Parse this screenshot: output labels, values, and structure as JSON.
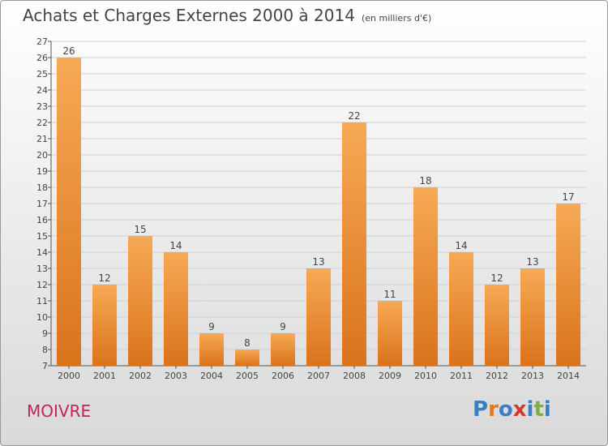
{
  "title": "Achats et Charges Externes 2000 à 2014",
  "unit": "(en milliers d'€)",
  "commune": "MOIVRE",
  "logo": {
    "text": "Proxiti",
    "colors": [
      "#3a7fc0",
      "#e07a1f",
      "#3a7fc0",
      "#d43a2a",
      "#3a7fc0",
      "#7fb03a",
      "#3a7fc0"
    ]
  },
  "colors": {
    "bar_light": "#f7a955",
    "bar_dark": "#d9731c",
    "commune": "#c0245a"
  },
  "chart_data": {
    "type": "bar",
    "title": "Achats et Charges Externes 2000 à 2014",
    "categories": [
      "2000",
      "2001",
      "2002",
      "2003",
      "2004",
      "2005",
      "2006",
      "2007",
      "2008",
      "2009",
      "2010",
      "2011",
      "2012",
      "2013",
      "2014"
    ],
    "values": [
      26,
      12,
      15,
      14,
      9,
      8,
      9,
      13,
      22,
      11,
      18,
      14,
      12,
      13,
      17
    ],
    "ylim": [
      7,
      27
    ],
    "yticks": [
      7,
      8,
      9,
      10,
      11,
      12,
      13,
      14,
      15,
      16,
      17,
      18,
      19,
      20,
      21,
      22,
      23,
      24,
      25,
      26,
      27
    ],
    "grid": true,
    "data_labels": true
  }
}
